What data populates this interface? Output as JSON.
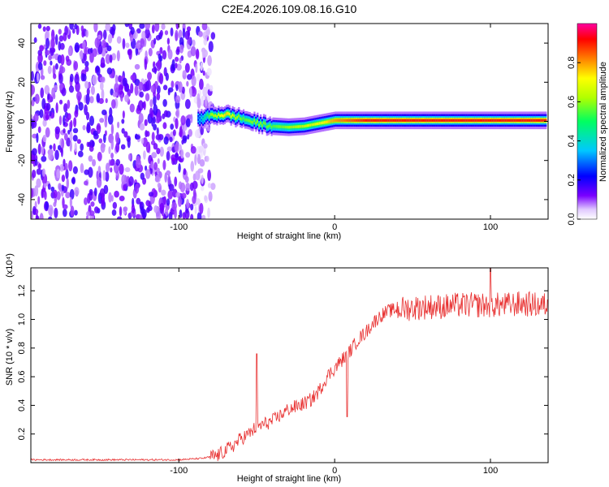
{
  "title": "C2E4.2026.109.08.16.G10",
  "chart_data": [
    {
      "type": "heatmap",
      "title": "C2E4.2026.109.08.16.G10",
      "xlabel": "Height of straight line (km)",
      "ylabel": "Frequency (Hz)",
      "xlim": [
        -195,
        137
      ],
      "ylim": [
        -50,
        50
      ],
      "x_ticks": [
        -100,
        0,
        100
      ],
      "x_tick_labels": [
        "-100",
        "0",
        "100"
      ],
      "y_ticks": [
        -40,
        -20,
        0,
        20,
        40
      ],
      "y_tick_labels": [
        "-40",
        "-20",
        "0",
        "20",
        "40"
      ],
      "colorbar": {
        "label": "Normalized spectral amplitude",
        "range": [
          0,
          1
        ],
        "ticks": [
          0.0,
          0.2,
          0.4,
          0.6,
          0.8
        ],
        "tick_labels": [
          "0.0",
          "0.2",
          "0.4",
          "0.6",
          "0.8"
        ]
      },
      "ridge": {
        "description_x": [
          -88,
          -80,
          -70,
          -60,
          -50,
          -40,
          -30,
          -20,
          -10,
          0,
          10,
          20,
          135
        ],
        "frequency": [
          1,
          3,
          3.5,
          1.5,
          -1,
          -2.5,
          -3,
          -2.5,
          -1,
          0.5,
          0.5,
          0.5,
          0.5
        ],
        "amplitude": [
          0.3,
          0.6,
          0.75,
          0.55,
          0.6,
          0.55,
          0.6,
          0.65,
          0.7,
          0.8,
          0.85,
          0.9,
          0.9
        ]
      },
      "noise_region_x": [
        -195,
        -78
      ],
      "grid": false
    },
    {
      "type": "line",
      "xlabel": "Height of straight line (km)",
      "ylabel": "SNR (10 * v/v)",
      "y_multiplier": "(x10⁴)",
      "xlim": [
        -195,
        137
      ],
      "ylim": [
        0,
        1.36
      ],
      "x_ticks": [
        -100,
        0,
        100
      ],
      "x_tick_labels": [
        "-100",
        "0",
        "100"
      ],
      "y_ticks": [
        0.2,
        0.4,
        0.6,
        0.8,
        1.0,
        1.2
      ],
      "y_tick_labels": [
        "0.2",
        "0.4",
        "0.6",
        "0.8",
        "1.0",
        "1.2"
      ],
      "color": "#e83030",
      "series": [
        {
          "x": [
            -195,
            -150,
            -100,
            -85,
            -75,
            -65,
            -60,
            -55,
            -50,
            -45,
            -40,
            -35,
            -30,
            -25,
            -20,
            -15,
            -10,
            -5,
            0,
            5,
            10,
            15,
            20,
            25,
            30,
            35,
            40,
            50,
            60,
            70,
            80,
            90,
            100,
            110,
            120,
            130,
            137
          ],
          "values": [
            0.02,
            0.02,
            0.02,
            0.03,
            0.05,
            0.12,
            0.17,
            0.2,
            0.25,
            0.27,
            0.29,
            0.33,
            0.37,
            0.39,
            0.41,
            0.44,
            0.5,
            0.6,
            0.66,
            0.72,
            0.78,
            0.86,
            0.91,
            0.98,
            1.03,
            1.06,
            1.07,
            1.08,
            1.09,
            1.09,
            1.1,
            1.1,
            1.1,
            1.1,
            1.11,
            1.1,
            1.1
          ]
        }
      ],
      "spikes": [
        {
          "x": -50,
          "value": 0.76
        },
        {
          "x": 8,
          "value": 0.32
        },
        {
          "x": 100,
          "value": 1.36
        }
      ],
      "grid": false
    }
  ]
}
